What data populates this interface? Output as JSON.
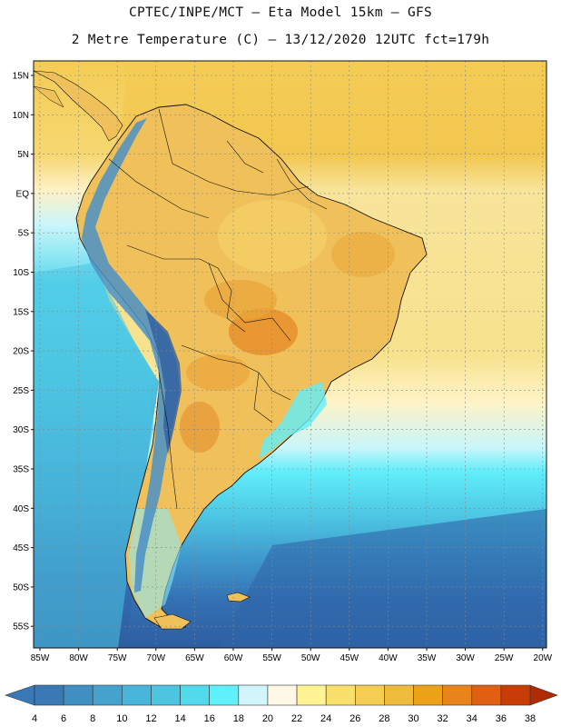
{
  "title_line1": "CPTEC/INPE/MCT –  Eta Model 15km – GFS",
  "title_line2": "2 Metre Temperature (C) – 13/12/2020 12UTC fct=179h",
  "lat_labels": [
    "15N",
    "10N",
    "5N",
    "EQ",
    "5S",
    "10S",
    "15S",
    "20S",
    "25S",
    "30S",
    "35S",
    "40S",
    "45S",
    "50S",
    "55S"
  ],
  "lon_labels": [
    "85W",
    "80W",
    "75W",
    "70W",
    "65W",
    "60W",
    "55W",
    "50W",
    "45W",
    "40W",
    "35W",
    "30W",
    "25W",
    "20W"
  ],
  "colorbar": {
    "labels": [
      "4",
      "6",
      "8",
      "10",
      "12",
      "14",
      "16",
      "18",
      "20",
      "22",
      "24",
      "26",
      "28",
      "30",
      "32",
      "34",
      "36",
      "38"
    ],
    "colors": [
      "#3a78b6",
      "#3f8fc3",
      "#45a2cf",
      "#49b4dc",
      "#4cc4e2",
      "#52d9ec",
      "#60f0fa",
      "#d2f5fb",
      "#fff8e6",
      "#fff394",
      "#f9e06c",
      "#f4cd52",
      "#eebb3c",
      "#eca218",
      "#e7851c",
      "#df6012",
      "#c73d08"
    ],
    "low_color": "#3a78b6",
    "high_color": "#b02a06"
  },
  "colors": {
    "ocean_north": "#f4cc55",
    "ocean_tropic": "#f8e49a",
    "ocean_20": "#fff3c6",
    "ocean_cyan": "#60eefa",
    "ocean_mid": "#4cc4e2",
    "ocean_deep": "#3a80c0",
    "ocean_south": "#2f65a8",
    "land": "#f0c05a",
    "land_hot": "#e89430",
    "andes": "#4a90c8"
  }
}
